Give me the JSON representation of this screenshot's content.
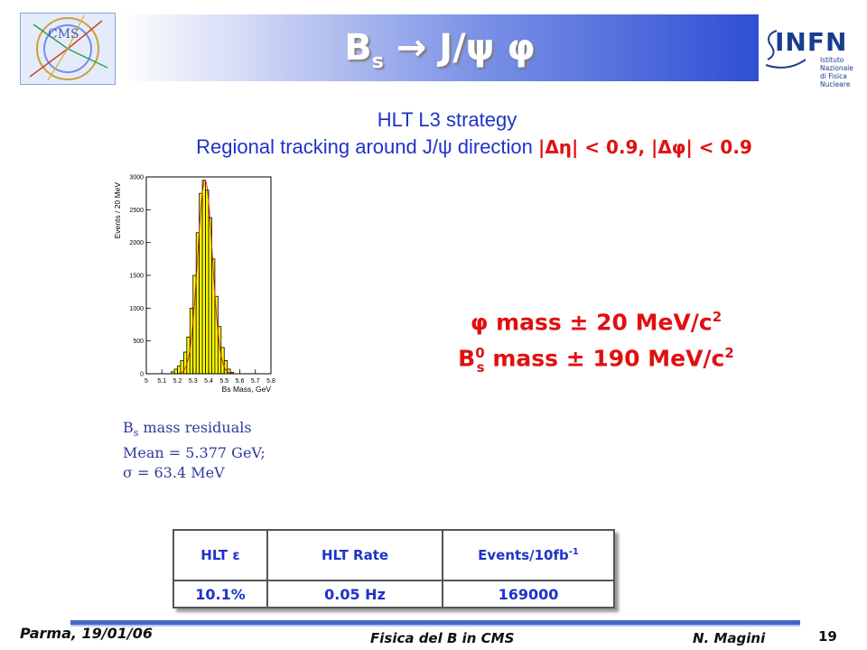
{
  "header": {
    "title_main": "B",
    "title_sub": "s",
    "title_rest": " → J/ψ φ",
    "infn_label": "INFN",
    "infn_sub": "Istituto Nazionale\ndi Fisica Nucleare"
  },
  "strategy": {
    "line1": "HLT L3 strategy",
    "line2_prefix": "Regional tracking around J/ψ direction ",
    "line2_cuts": "|Δη| < 0.9, |Δφ| < 0.9"
  },
  "mass_window": {
    "phi_prefix": "φ mass ± 20 MeV/c",
    "phi_sup": "2",
    "bs_B": "B",
    "bs_sup": "0",
    "bs_sub": "s",
    "bs_rest": " mass ± 190 MeV/c",
    "bs_sup2": "2"
  },
  "chart_data": {
    "type": "bar",
    "xlabel": "B_s Mass, GeV",
    "ylabel": "Events / 20 MeV",
    "xlim": [
      5.0,
      5.8
    ],
    "ylim": [
      0,
      3000
    ],
    "x_ticks": [
      5,
      5.1,
      5.2,
      5.3,
      5.4,
      5.5,
      5.6,
      5.7,
      5.8
    ],
    "y_ticks": [
      0,
      500,
      1000,
      1500,
      2000,
      2500,
      3000
    ],
    "bin_width": 0.02,
    "bin_centers": [
      5.17,
      5.19,
      5.21,
      5.23,
      5.25,
      5.27,
      5.29,
      5.31,
      5.33,
      5.35,
      5.37,
      5.39,
      5.41,
      5.43,
      5.45,
      5.47,
      5.49,
      5.51,
      5.53,
      5.55
    ],
    "values": [
      30,
      70,
      120,
      200,
      330,
      560,
      1000,
      1500,
      2150,
      2750,
      2950,
      2800,
      2380,
      1750,
      1180,
      720,
      400,
      200,
      70,
      20
    ],
    "fit_curve": true,
    "fill_color": "#ffff00"
  },
  "residuals": {
    "line1_B": "B",
    "line1_sub": "s",
    "line1_rest": " mass residuals",
    "line2": "Mean = 5.377 GeV;",
    "line3": "σ = 63.4 MeV"
  },
  "table": {
    "headers": [
      "HLT ε",
      "HLT Rate",
      "Events/10fb"
    ],
    "events_sup": "-1",
    "rows": [
      [
        "10.1%",
        "0.05 Hz",
        "169000"
      ]
    ]
  },
  "footer": {
    "left": "Parma, 19/01/06",
    "center": "Fisica del B in CMS",
    "right": "N. Magini",
    "page": "19"
  },
  "colors": {
    "title_gradient_end": "#2e4fd4",
    "accent_red": "#e01010",
    "text_blue": "#1e33c8",
    "hist_fill": "#ffff00"
  }
}
